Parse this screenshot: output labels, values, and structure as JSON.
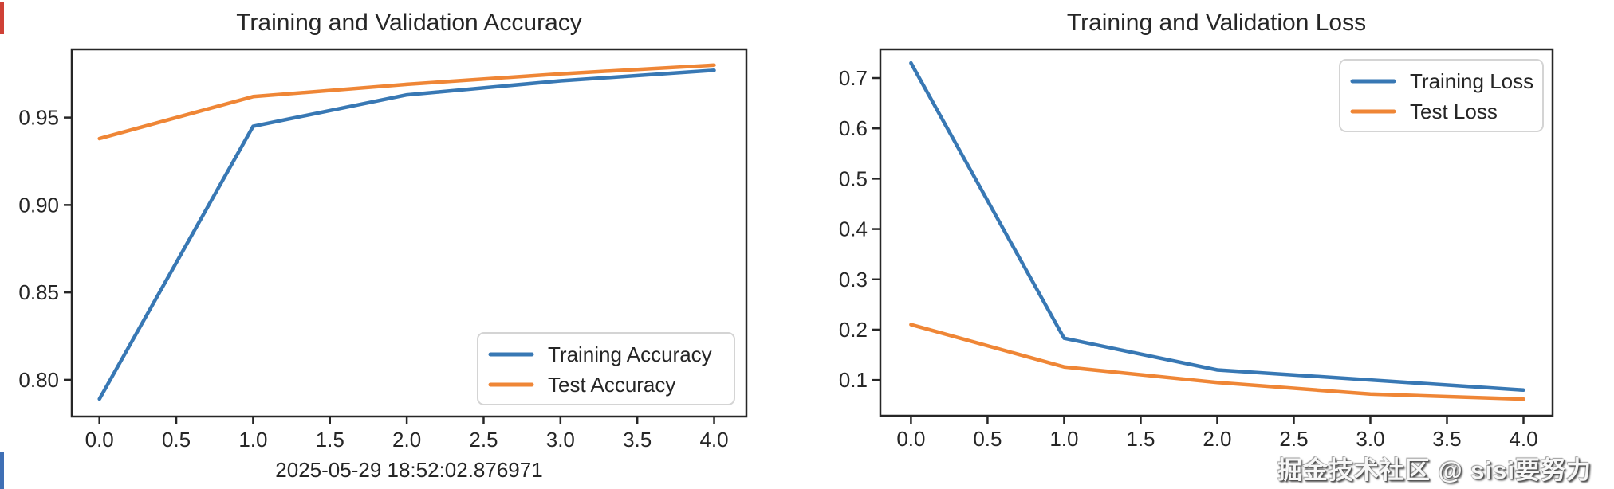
{
  "figure": {
    "background": "#ffffff"
  },
  "chart_data": [
    {
      "type": "line",
      "title": "Training and Validation Accuracy",
      "xlabel": "2025-05-29 18:52:02.876971",
      "ylabel": "",
      "x": [
        0,
        1,
        2,
        3,
        4
      ],
      "series": [
        {
          "name": "Training Accuracy",
          "color": "#3878b4",
          "values": [
            0.789,
            0.945,
            0.963,
            0.971,
            0.977
          ]
        },
        {
          "name": "Test Accuracy",
          "color": "#ef8636",
          "values": [
            0.938,
            0.962,
            0.969,
            0.975,
            0.98
          ]
        }
      ],
      "xlim": [
        -0.18,
        4.21
      ],
      "ylim": [
        0.779,
        0.989
      ],
      "xticks": [
        0.0,
        0.5,
        1.0,
        1.5,
        2.0,
        2.5,
        3.0,
        3.5,
        4.0
      ],
      "xtick_labels": [
        "0.0",
        "0.5",
        "1.0",
        "1.5",
        "2.0",
        "2.5",
        "3.0",
        "3.5",
        "4.0"
      ],
      "yticks": [
        0.8,
        0.85,
        0.9,
        0.95
      ],
      "ytick_labels": [
        "0.80",
        "0.85",
        "0.90",
        "0.95"
      ],
      "legend_position": "lower right",
      "grid": false
    },
    {
      "type": "line",
      "title": "Training and Validation Loss",
      "xlabel": "",
      "ylabel": "",
      "x": [
        0,
        1,
        2,
        3,
        4
      ],
      "series": [
        {
          "name": "Training Loss",
          "color": "#3878b4",
          "values": [
            0.73,
            0.183,
            0.12,
            0.1,
            0.08
          ]
        },
        {
          "name": "Test Loss",
          "color": "#ef8636",
          "values": [
            0.21,
            0.126,
            0.095,
            0.072,
            0.062
          ]
        }
      ],
      "xlim": [
        -0.2,
        4.19
      ],
      "ylim": [
        0.029,
        0.757
      ],
      "xticks": [
        0.0,
        0.5,
        1.0,
        1.5,
        2.0,
        2.5,
        3.0,
        3.5,
        4.0
      ],
      "xtick_labels": [
        "0.0",
        "0.5",
        "1.0",
        "1.5",
        "2.0",
        "2.5",
        "3.0",
        "3.5",
        "4.0"
      ],
      "yticks": [
        0.1,
        0.2,
        0.3,
        0.4,
        0.5,
        0.6,
        0.7
      ],
      "ytick_labels": [
        "0.1",
        "0.2",
        "0.3",
        "0.4",
        "0.5",
        "0.6",
        "0.7"
      ],
      "legend_position": "upper right",
      "grid": false
    }
  ],
  "watermark": {
    "text": "掘金技术社区 @ sisi要努力"
  },
  "colors": {
    "line_blue": "#3878b4",
    "line_orange": "#ef8636",
    "axis": "#262626",
    "text": "#262626",
    "title": "#2b2b2b",
    "legend_border": "#d4d4d4",
    "legend_fill": "#ffffff",
    "watermark_text": "#f7f7f7",
    "edge_artifact_red": "#cf4136",
    "edge_artifact_blue": "#3f6fb5"
  }
}
